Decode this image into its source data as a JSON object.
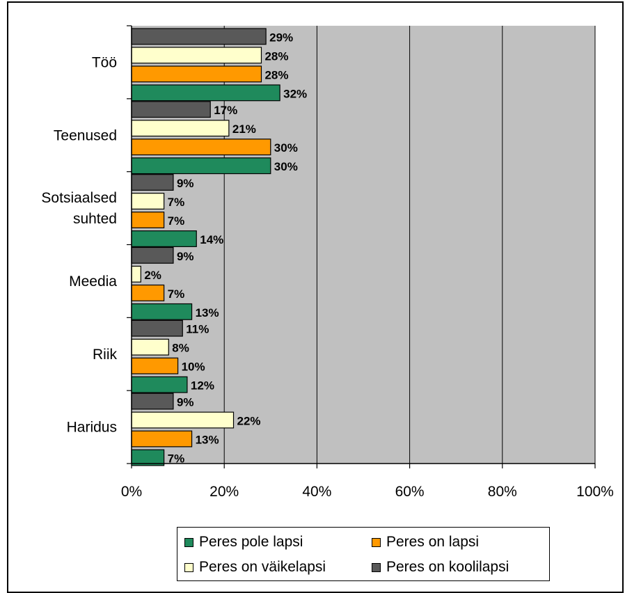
{
  "chart_data": {
    "type": "bar",
    "orientation": "horizontal",
    "categories": [
      "Töö",
      "Teenused",
      "Sotsiaalsed suhted",
      "Meedia",
      "Riik",
      "Haridus"
    ],
    "category_lines": [
      [
        "Töö"
      ],
      [
        "Teenused"
      ],
      [
        "Sotsiaalsed",
        "suhted"
      ],
      [
        "Meedia"
      ],
      [
        "Riik"
      ],
      [
        "Haridus"
      ]
    ],
    "series": [
      {
        "name": "Peres on koolilapsi",
        "color": "#595959",
        "values": [
          29,
          17,
          9,
          9,
          11,
          9
        ]
      },
      {
        "name": "Peres on väikelapsi",
        "color": "#FFFFCC",
        "values": [
          28,
          21,
          7,
          2,
          8,
          22
        ]
      },
      {
        "name": "Peres on lapsi",
        "color": "#FF9900",
        "values": [
          28,
          30,
          7,
          7,
          10,
          13
        ]
      },
      {
        "name": "Peres pole lapsi",
        "color": "#1F8A5C",
        "values": [
          32,
          30,
          14,
          13,
          12,
          7
        ]
      }
    ],
    "xlim": [
      0,
      100
    ],
    "xticks": [
      "0%",
      "20%",
      "40%",
      "60%",
      "80%",
      "100%"
    ],
    "value_suffix": "%",
    "grid": true,
    "plot_background": "#C0C0C0",
    "legend_position": "bottom",
    "legend": {
      "rows": [
        [
          "Peres pole lapsi",
          "Peres on lapsi"
        ],
        [
          "Peres on väikelapsi",
          "Peres on koolilapsi"
        ]
      ]
    }
  }
}
